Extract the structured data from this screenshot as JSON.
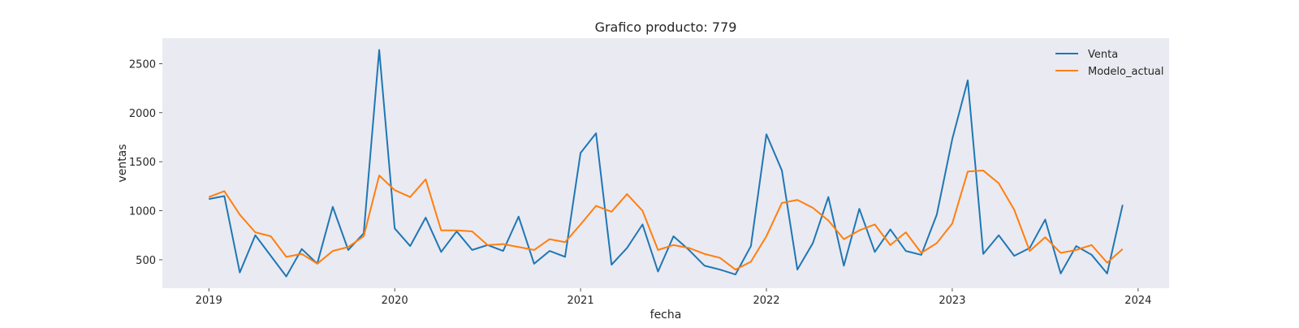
{
  "chart_data": {
    "type": "line",
    "title": "Grafico producto: 779",
    "xlabel": "fecha",
    "ylabel": "ventas",
    "x": [
      "2019-01",
      "2019-02",
      "2019-03",
      "2019-04",
      "2019-05",
      "2019-06",
      "2019-07",
      "2019-08",
      "2019-09",
      "2019-10",
      "2019-11",
      "2019-12",
      "2020-01",
      "2020-02",
      "2020-03",
      "2020-04",
      "2020-05",
      "2020-06",
      "2020-07",
      "2020-08",
      "2020-09",
      "2020-10",
      "2020-11",
      "2020-12",
      "2021-01",
      "2021-02",
      "2021-03",
      "2021-04",
      "2021-05",
      "2021-06",
      "2021-07",
      "2021-08",
      "2021-09",
      "2021-10",
      "2021-11",
      "2021-12",
      "2022-01",
      "2022-02",
      "2022-03",
      "2022-04",
      "2022-05",
      "2022-06",
      "2022-07",
      "2022-08",
      "2022-09",
      "2022-10",
      "2022-11",
      "2022-12",
      "2023-01",
      "2023-02",
      "2023-03",
      "2023-04",
      "2023-05",
      "2023-06",
      "2023-07",
      "2023-08",
      "2023-09",
      "2023-10",
      "2023-11",
      "2023-12"
    ],
    "series": [
      {
        "name": "Venta",
        "color": "#1f77b4",
        "values": [
          1120,
          1150,
          370,
          750,
          540,
          330,
          610,
          460,
          1040,
          600,
          770,
          2640,
          820,
          640,
          930,
          580,
          790,
          600,
          650,
          590,
          940,
          460,
          590,
          530,
          1590,
          1790,
          450,
          620,
          860,
          380,
          740,
          600,
          440,
          400,
          350,
          640,
          1780,
          1410,
          400,
          670,
          1140,
          440,
          1020,
          580,
          810,
          590,
          550,
          960,
          1730,
          2330,
          560,
          750,
          540,
          620,
          910,
          360,
          640,
          550,
          360,
          1060
        ]
      },
      {
        "name": "Modelo_actual",
        "color": "#ff7f0e",
        "values": [
          1140,
          1200,
          960,
          780,
          740,
          530,
          560,
          460,
          590,
          630,
          740,
          1360,
          1210,
          1140,
          1320,
          800,
          800,
          790,
          650,
          660,
          630,
          600,
          710,
          680,
          860,
          1050,
          990,
          1170,
          1000,
          600,
          650,
          620,
          560,
          520,
          400,
          480,
          740,
          1080,
          1110,
          1030,
          900,
          710,
          800,
          860,
          650,
          780,
          570,
          670,
          870,
          1400,
          1410,
          1280,
          1010,
          590,
          730,
          570,
          600,
          650,
          470,
          610
        ]
      }
    ],
    "x_ticks": [
      "2019",
      "2020",
      "2021",
      "2022",
      "2023",
      "2024"
    ],
    "y_ticks": [
      500,
      1000,
      1500,
      2000,
      2500
    ],
    "ylim": [
      210,
      2760
    ],
    "xlim": [
      "2018-10",
      "2024-03"
    ],
    "grid": false,
    "legend_position": "top-right",
    "background": "#eaeaf2"
  }
}
